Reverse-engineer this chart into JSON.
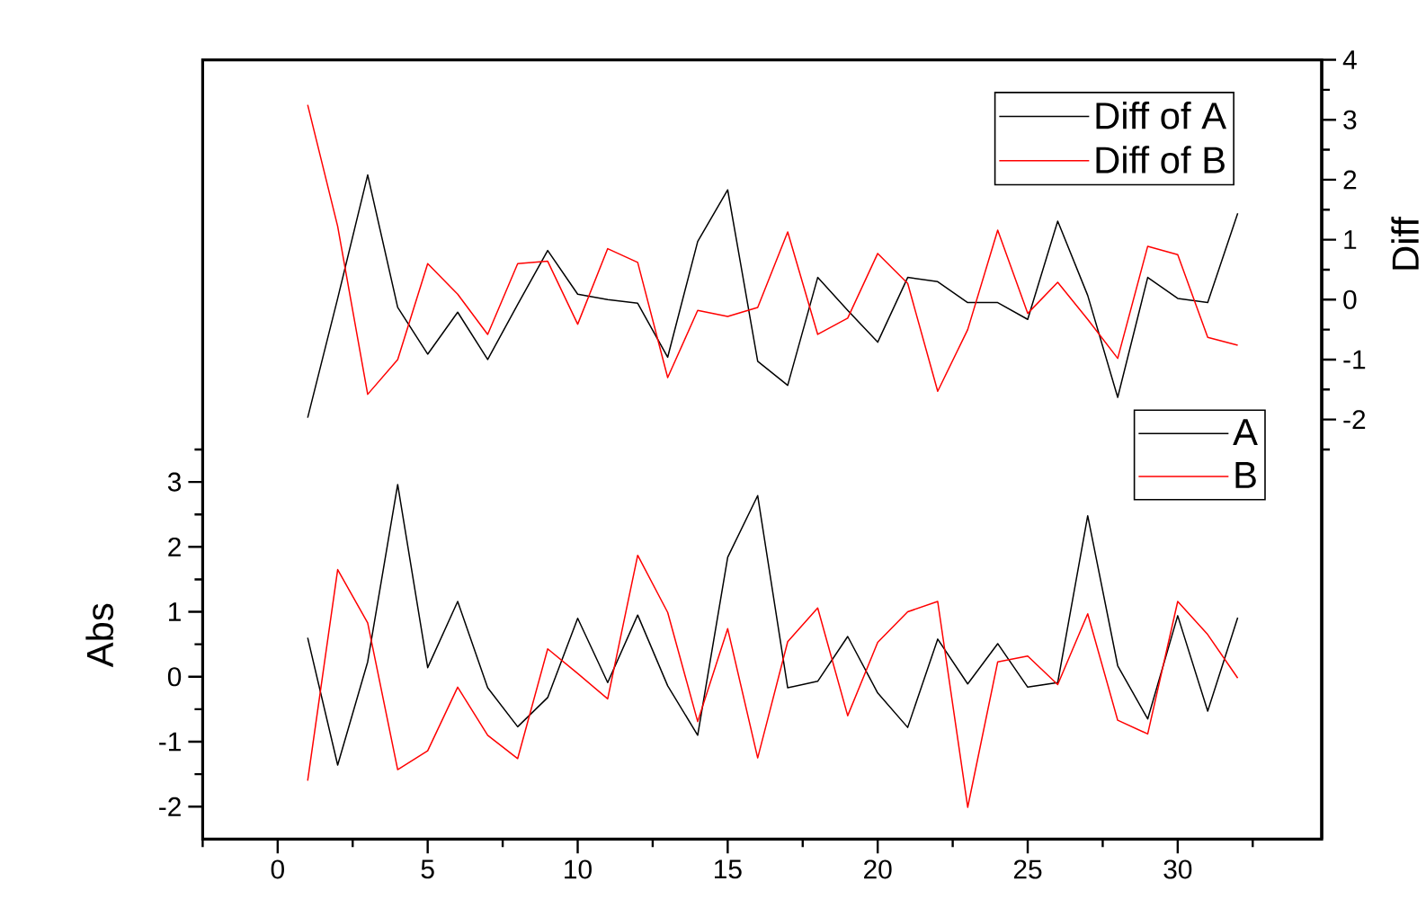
{
  "chart_data": {
    "type": "line",
    "ylabel": "Abs",
    "y2label": "Diff",
    "x": [
      1,
      2,
      3,
      4,
      5,
      6,
      7,
      8,
      9,
      10,
      11,
      12,
      13,
      14,
      15,
      16,
      17,
      18,
      19,
      20,
      21,
      22,
      23,
      24,
      25,
      26,
      27,
      28,
      29,
      30,
      31,
      32
    ],
    "series": [
      {
        "name": "A",
        "color": "#000000",
        "values": [
          0.6,
          -1.36,
          0.23,
          2.96,
          0.14,
          1.16,
          -0.17,
          -0.77,
          -0.32,
          0.9,
          -0.09,
          0.95,
          -0.14,
          -0.9,
          1.84,
          2.79,
          -0.17,
          -0.07,
          0.62,
          -0.25,
          -0.78,
          0.58,
          -0.11,
          0.51,
          -0.16,
          -0.09,
          2.48,
          0.17,
          -0.65,
          0.94,
          -0.53,
          0.91
        ]
      },
      {
        "name": "B",
        "color": "#ff0000",
        "values": [
          -1.6,
          1.65,
          0.83,
          -1.43,
          -1.14,
          -0.16,
          -0.9,
          -1.26,
          0.43,
          0.05,
          -0.34,
          1.87,
          0.99,
          -0.69,
          0.74,
          -1.25,
          0.54,
          1.06,
          -0.6,
          0.53,
          1.0,
          1.16,
          -2.01,
          0.23,
          0.32,
          -0.12,
          0.97,
          -0.67,
          -0.88,
          1.16,
          0.65,
          -0.02
        ]
      },
      {
        "name": "Diff of A",
        "color": "#000000",
        "axis": "y2",
        "values": [
          -1.97,
          0.02,
          2.08,
          -0.13,
          -0.91,
          -0.21,
          -1.0,
          -0.08,
          0.82,
          0.09,
          0.0,
          -0.06,
          -0.96,
          0.97,
          1.83,
          -1.03,
          -1.43,
          0.37,
          -0.18,
          -0.71,
          0.37,
          0.3,
          -0.05,
          -0.05,
          -0.33,
          1.31,
          0.07,
          -1.63,
          0.37,
          0.02,
          -0.05,
          1.44
        ]
      },
      {
        "name": "Diff of B",
        "color": "#ff0000",
        "axis": "y2",
        "values": [
          3.25,
          1.22,
          -1.58,
          -1.0,
          0.6,
          0.09,
          -0.58,
          0.6,
          0.64,
          -0.41,
          0.85,
          0.62,
          -1.3,
          -0.18,
          -0.28,
          -0.13,
          1.13,
          -0.58,
          -0.31,
          0.77,
          0.27,
          -1.53,
          -0.5,
          1.16,
          -0.23,
          0.29,
          -0.33,
          -0.98,
          0.89,
          0.75,
          -0.63,
          -0.76
        ]
      }
    ],
    "xlim": [
      -2.5,
      34.8
    ],
    "xticks": [
      {
        "value": -2.5,
        "label": null
      },
      0,
      {
        "value": 2.5,
        "label": null
      },
      5,
      {
        "value": 7.5,
        "label": null
      },
      10,
      {
        "value": 12.5,
        "label": null
      },
      15,
      {
        "value": 17.5,
        "label": null
      },
      20,
      {
        "value": 22.5,
        "label": null
      },
      25,
      {
        "value": 27.5,
        "label": null
      },
      30,
      {
        "value": 32.5,
        "label": null
      }
    ],
    "ylim": [
      -2.5,
      9.5
    ],
    "yticks": [
      -2,
      {
        "value": -1.5,
        "label": null
      },
      -1,
      {
        "value": -0.5,
        "label": null
      },
      0,
      {
        "value": 0.5,
        "label": null
      },
      1,
      {
        "value": 1.5,
        "label": null
      },
      2,
      {
        "value": 2.5,
        "label": null
      },
      3,
      {
        "value": 3.5,
        "label": null
      }
    ],
    "y2lim": [
      -9,
      4
    ],
    "y2ticks": [
      {
        "value": -2.5,
        "label": null
      },
      -2,
      {
        "value": -1.5,
        "label": null
      },
      -1,
      {
        "value": -0.5,
        "label": null
      },
      0,
      {
        "value": 0.5,
        "label": null
      },
      1,
      {
        "value": 1.5,
        "label": null
      },
      2,
      {
        "value": 2.5,
        "label": null
      },
      3,
      {
        "value": 3.5,
        "label": null
      },
      4
    ],
    "legend": "right",
    "marker": "none",
    "line_style": "solid"
  }
}
